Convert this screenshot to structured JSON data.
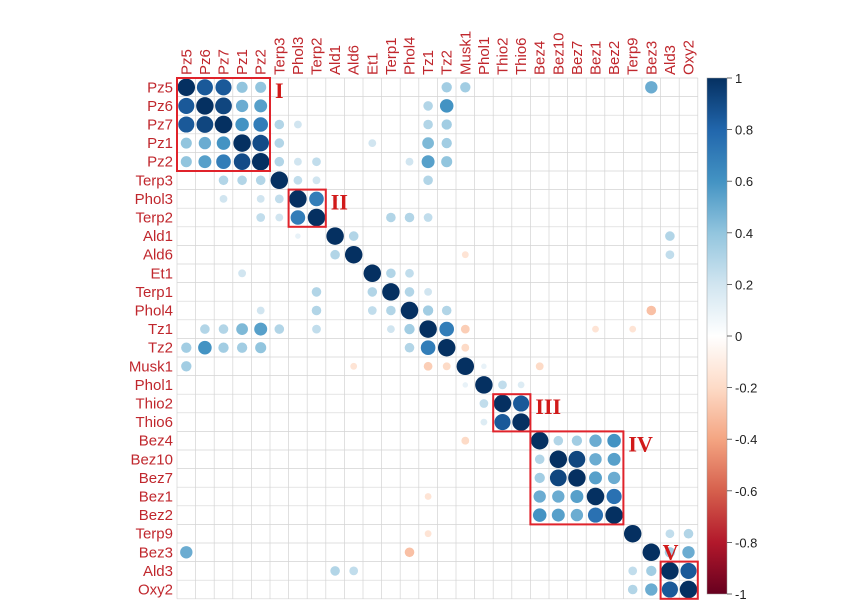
{
  "colors": {
    "label": "#c0272d",
    "grid": "#d4d4d4",
    "box": "#e0232b",
    "roman": "#d11a1a",
    "neg_strong": "#67001f",
    "pos_strong": "#053061"
  },
  "chart_data": {
    "type": "heatmap",
    "style": "correlation-circle-matrix",
    "variables": [
      "Pz5",
      "Pz6",
      "Pz7",
      "Pz1",
      "Pz2",
      "Terp3",
      "Phol3",
      "Terp2",
      "Ald1",
      "Ald6",
      "Et1",
      "Terp1",
      "Phol4",
      "Tz1",
      "Tz2",
      "Musk1",
      "Phol1",
      "Thio2",
      "Thio6",
      "Bez4",
      "Bez10",
      "Bez7",
      "Bez1",
      "Bez2",
      "Terp9",
      "Bez3",
      "Ald3",
      "Oxy2"
    ],
    "colorbar": {
      "ticks": [
        "1",
        "0.8",
        "0.6",
        "0.4",
        "0.2",
        "0",
        "-0.2",
        "-0.4",
        "-0.6",
        "-0.8",
        "-1"
      ],
      "range": [
        -1,
        1
      ]
    },
    "clusters": [
      {
        "label": "I",
        "from": 0,
        "to": 4
      },
      {
        "label": "II",
        "from": 6,
        "to": 7
      },
      {
        "label": "III",
        "from": 17,
        "to": 18
      },
      {
        "label": "IV",
        "from": 19,
        "to": 23
      },
      {
        "label": "V",
        "from": 26,
        "to": 27
      }
    ],
    "correlations": [
      [
        0,
        1,
        0.85
      ],
      [
        0,
        2,
        0.85
      ],
      [
        0,
        3,
        0.4
      ],
      [
        0,
        4,
        0.4
      ],
      [
        0,
        14,
        0.35
      ],
      [
        0,
        15,
        0.35
      ],
      [
        0,
        25,
        0.5
      ],
      [
        1,
        2,
        0.92
      ],
      [
        1,
        3,
        0.5
      ],
      [
        1,
        4,
        0.55
      ],
      [
        1,
        13,
        0.3
      ],
      [
        1,
        14,
        0.6
      ],
      [
        2,
        3,
        0.6
      ],
      [
        2,
        4,
        0.7
      ],
      [
        2,
        5,
        0.3
      ],
      [
        2,
        6,
        0.2
      ],
      [
        2,
        13,
        0.3
      ],
      [
        2,
        14,
        0.35
      ],
      [
        3,
        4,
        0.9
      ],
      [
        3,
        5,
        0.3
      ],
      [
        3,
        10,
        0.2
      ],
      [
        3,
        13,
        0.45
      ],
      [
        3,
        14,
        0.35
      ],
      [
        4,
        5,
        0.3
      ],
      [
        4,
        6,
        0.2
      ],
      [
        4,
        7,
        0.25
      ],
      [
        4,
        12,
        0.2
      ],
      [
        4,
        13,
        0.55
      ],
      [
        4,
        14,
        0.4
      ],
      [
        5,
        6,
        0.25
      ],
      [
        5,
        7,
        0.2
      ],
      [
        5,
        13,
        0.3
      ],
      [
        6,
        7,
        0.7
      ],
      [
        6,
        8,
        0.1
      ],
      [
        7,
        11,
        0.3
      ],
      [
        7,
        12,
        0.3
      ],
      [
        7,
        13,
        0.25
      ],
      [
        8,
        9,
        0.3
      ],
      [
        8,
        26,
        0.3
      ],
      [
        9,
        26,
        0.25
      ],
      [
        9,
        15,
        -0.15
      ],
      [
        10,
        11,
        0.3
      ],
      [
        10,
        12,
        0.25
      ],
      [
        11,
        12,
        0.3
      ],
      [
        11,
        13,
        0.2
      ],
      [
        12,
        13,
        0.35
      ],
      [
        12,
        14,
        0.3
      ],
      [
        12,
        25,
        -0.3
      ],
      [
        13,
        14,
        0.7
      ],
      [
        13,
        15,
        -0.25
      ],
      [
        13,
        22,
        -0.15
      ],
      [
        13,
        24,
        -0.15
      ],
      [
        14,
        15,
        -0.2
      ],
      [
        15,
        16,
        0.1
      ],
      [
        15,
        19,
        -0.2
      ],
      [
        16,
        17,
        0.25
      ],
      [
        16,
        18,
        0.15
      ],
      [
        17,
        18,
        0.85
      ],
      [
        19,
        20,
        0.3
      ],
      [
        19,
        21,
        0.35
      ],
      [
        19,
        22,
        0.5
      ],
      [
        19,
        23,
        0.6
      ],
      [
        20,
        21,
        0.92
      ],
      [
        20,
        22,
        0.5
      ],
      [
        20,
        23,
        0.55
      ],
      [
        21,
        22,
        0.55
      ],
      [
        21,
        23,
        0.5
      ],
      [
        22,
        23,
        0.75
      ],
      [
        24,
        26,
        0.25
      ],
      [
        24,
        27,
        0.3
      ],
      [
        25,
        26,
        0.35
      ],
      [
        25,
        27,
        0.5
      ],
      [
        26,
        27,
        0.85
      ]
    ]
  }
}
